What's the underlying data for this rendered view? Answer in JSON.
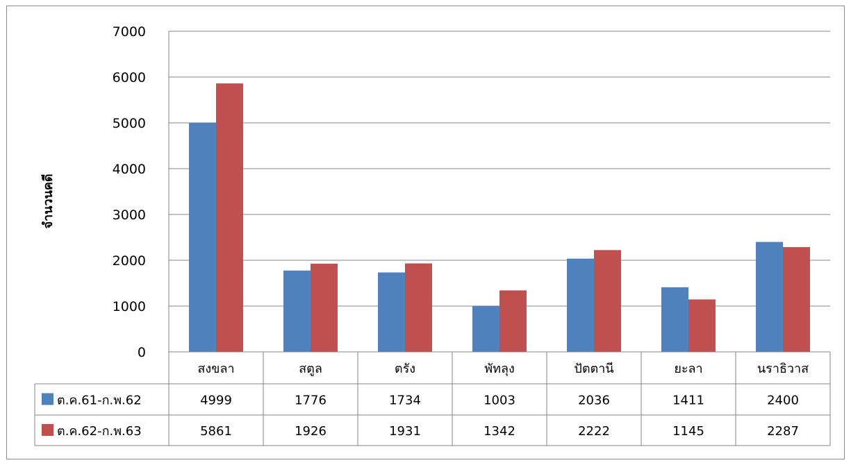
{
  "chart_data": {
    "type": "bar",
    "ylabel": "จำนวนคดี",
    "xlabel": "",
    "ylim": [
      0,
      7000
    ],
    "yticks": [
      0,
      1000,
      2000,
      3000,
      4000,
      5000,
      6000,
      7000
    ],
    "grid": true,
    "legend": "data-table",
    "categories": [
      "สงขลา",
      "สตูล",
      "ตรัง",
      "พัทลุง",
      "ปัตตานี",
      "ยะลา",
      "นราธิวาส"
    ],
    "series": [
      {
        "name": "ต.ค.61-ก.พ.62",
        "color": "#4f81bd",
        "values": [
          4999,
          1776,
          1734,
          1003,
          2036,
          1411,
          2400
        ]
      },
      {
        "name": "ต.ค.62-ก.พ.63",
        "color": "#c0504d",
        "values": [
          5861,
          1926,
          1931,
          1342,
          2222,
          1145,
          2287
        ]
      }
    ]
  }
}
